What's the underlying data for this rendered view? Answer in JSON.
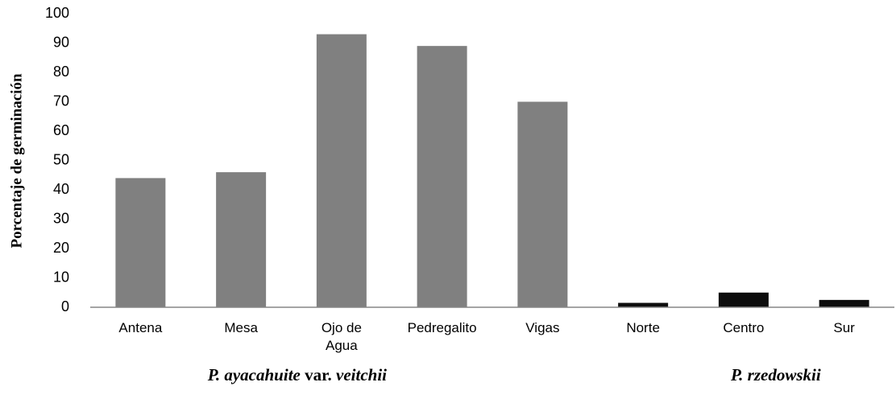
{
  "chart_data": {
    "type": "bar",
    "y_label": "Porcentaje de germinación",
    "categories": [
      "Antena",
      "Mesa",
      "Ojo de Agua",
      "Pedregalito",
      "Vigas",
      "Norte",
      "Centro",
      "Sur"
    ],
    "values": [
      44,
      46,
      93,
      89,
      70,
      1.5,
      5,
      2.5
    ],
    "colors": [
      "#808080",
      "#808080",
      "#808080",
      "#808080",
      "#808080",
      "#0d0d0d",
      "#0d0d0d",
      "#0d0d0d"
    ],
    "groups": [
      {
        "parts": [
          {
            "text": "P. ayacahuite",
            "italic": true
          },
          {
            "text": " var. ",
            "italic": false
          },
          {
            "text": "veitchii",
            "italic": true
          }
        ]
      },
      {
        "parts": [
          {
            "text": "P. rzedowskii",
            "italic": true
          }
        ]
      }
    ],
    "ylim": [
      0,
      100
    ],
    "yticks": [
      0,
      10,
      20,
      30,
      40,
      50,
      60,
      70,
      80,
      90,
      100
    ],
    "grid": false
  }
}
